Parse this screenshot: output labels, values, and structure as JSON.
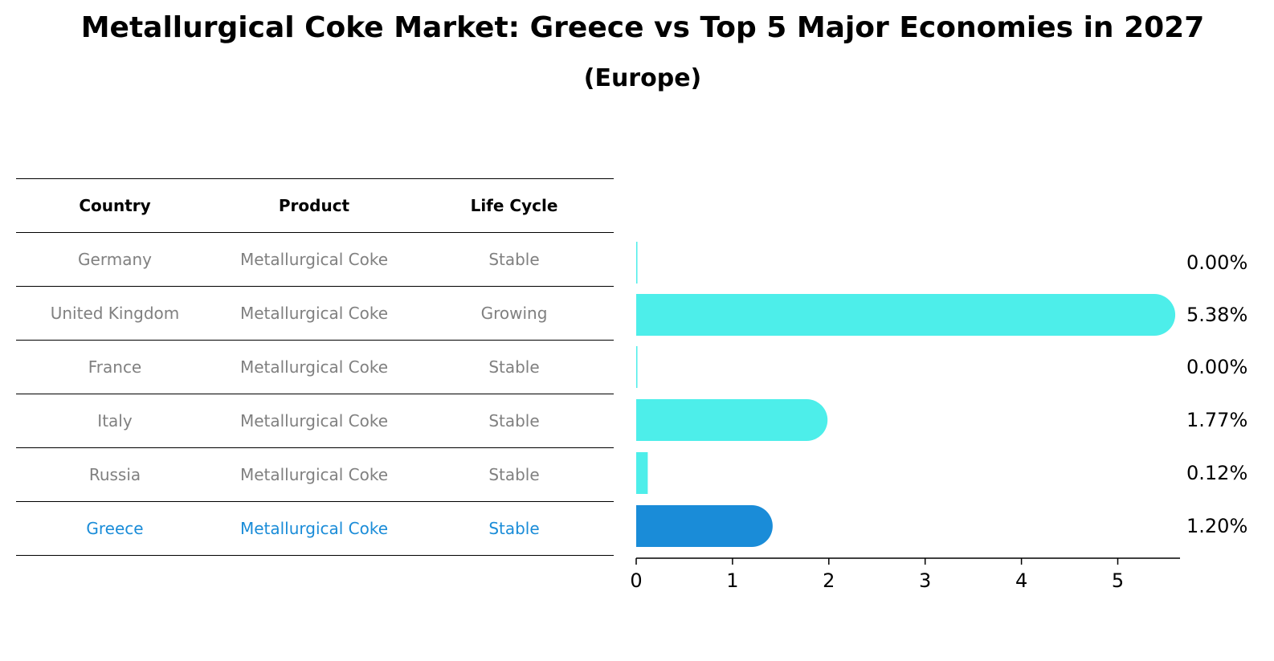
{
  "title": "Metallurgical Coke Market: Greece vs Top 5 Major Economies in 2027",
  "subtitle": "(Europe)",
  "table": {
    "headers": [
      "Country",
      "Product",
      "Life Cycle"
    ],
    "rows": [
      {
        "country": "Germany",
        "product": "Metallurgical Coke",
        "life_cycle": "Stable"
      },
      {
        "country": "United Kingdom",
        "product": "Metallurgical Coke",
        "life_cycle": "Growing"
      },
      {
        "country": "France",
        "product": "Metallurgical Coke",
        "life_cycle": "Stable"
      },
      {
        "country": "Italy",
        "product": "Metallurgical Coke",
        "life_cycle": "Stable"
      },
      {
        "country": "Russia",
        "product": "Metallurgical Coke",
        "life_cycle": "Stable"
      },
      {
        "country": "Greece",
        "product": "Metallurgical Coke",
        "life_cycle": "Stable"
      }
    ]
  },
  "colors": {
    "bar": "#4deeea",
    "highlight": "#1a8cd8",
    "muted_text": "#808080"
  },
  "chart_data": {
    "type": "bar",
    "orientation": "horizontal",
    "categories": [
      "Germany",
      "United Kingdom",
      "France",
      "Italy",
      "Russia",
      "Greece"
    ],
    "values": [
      0.0,
      5.38,
      0.0,
      1.77,
      0.12,
      1.2
    ],
    "value_labels": [
      "0.00%",
      "5.38%",
      "0.00%",
      "1.77%",
      "0.12%",
      "1.20%"
    ],
    "highlight_category": "Greece",
    "xlim": [
      0,
      5.65
    ],
    "xticks": [
      0,
      1,
      2,
      3,
      4,
      5
    ],
    "xtick_labels": [
      "0",
      "1",
      "2",
      "3",
      "4",
      "5"
    ],
    "xlabel": "",
    "ylabel": "",
    "grid": false
  }
}
